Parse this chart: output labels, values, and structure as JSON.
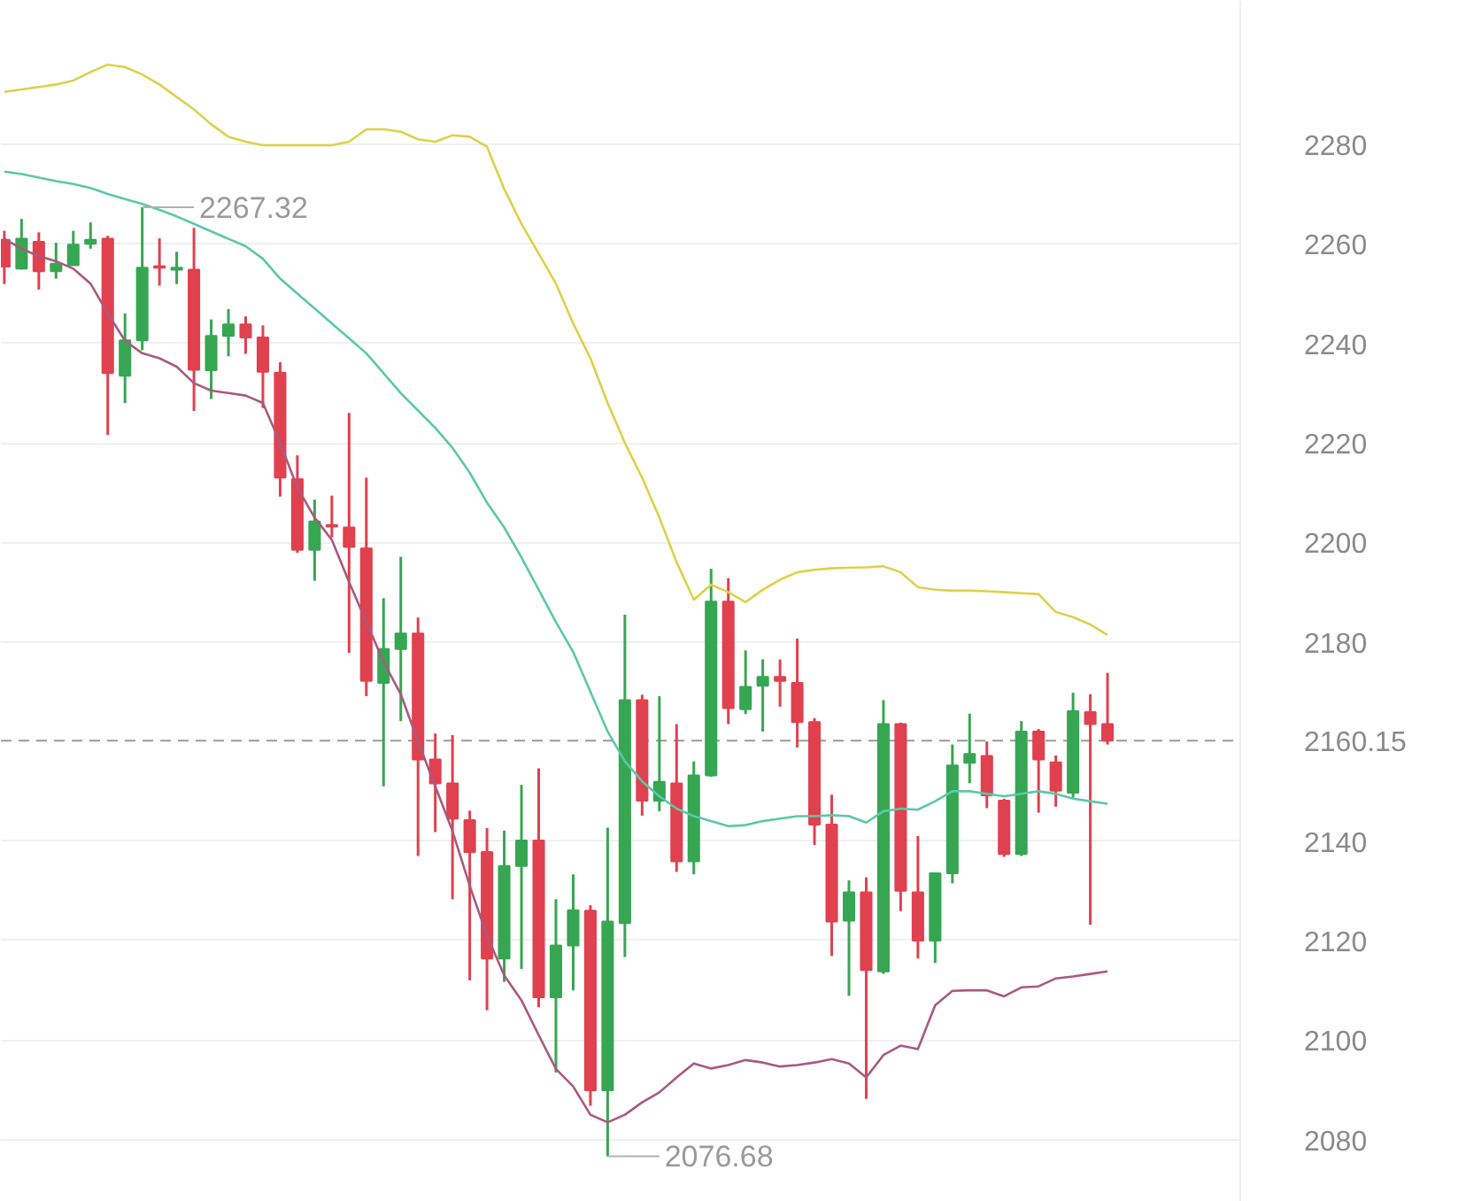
{
  "chart_data": {
    "type": "candlestick",
    "categories": [
      null,
      null,
      null,
      null,
      null,
      null,
      null,
      null,
      null,
      null,
      null,
      null,
      null,
      null,
      null,
      null,
      null,
      null,
      null,
      null,
      null,
      null,
      null,
      null,
      null,
      null,
      null,
      null,
      null,
      null,
      null,
      null,
      null,
      null,
      null,
      null,
      null,
      null,
      null,
      null,
      null,
      null,
      null,
      null,
      null,
      null,
      null,
      null,
      null,
      null,
      null,
      null,
      null,
      null,
      null,
      null,
      null,
      null,
      null,
      null,
      null,
      null,
      null,
      null,
      null
    ],
    "ohlc": [
      [
        2260.8,
        2262.6,
        2251.9,
        2255.4
      ],
      [
        2255,
        2265,
        2254.8,
        2261
      ],
      [
        2260.4,
        2262.3,
        2250.8,
        2254.5
      ],
      [
        2254.5,
        2260.2,
        2253,
        2256
      ],
      [
        2255.7,
        2262.6,
        2255.7,
        2259.8
      ],
      [
        2260,
        2264.3,
        2259,
        2260.8
      ],
      [
        2261,
        2261.6,
        2221.6,
        2234
      ],
      [
        2233.5,
        2246,
        2228,
        2240.6
      ],
      [
        2240.6,
        2267.32,
        2238.6,
        2255.2
      ],
      [
        2255.5,
        2261.1,
        2251.6,
        2255.2
      ],
      [
        2254.8,
        2258.4,
        2251.9,
        2255.2
      ],
      [
        2254.8,
        2263.2,
        2226.4,
        2234.7
      ],
      [
        2234.6,
        2244.8,
        2228.8,
        2241.5
      ],
      [
        2241.5,
        2246.9,
        2237.4,
        2243.8
      ],
      [
        2243.8,
        2245.4,
        2237.9,
        2241.2
      ],
      [
        2241.2,
        2243.6,
        2227,
        2234.3
      ],
      [
        2234.1,
        2236.2,
        2209.2,
        2213
      ],
      [
        2212.7,
        2217.5,
        2197.9,
        2198.5
      ],
      [
        2198.5,
        2208.6,
        2192.3,
        2204.2
      ],
      [
        2203.5,
        2209.4,
        2201,
        2203.2
      ],
      [
        2203,
        2226,
        2177.8,
        2199.1
      ],
      [
        2198.8,
        2213,
        2169.1,
        2172.2
      ],
      [
        2171.8,
        2188.8,
        2151,
        2178.6
      ],
      [
        2178.6,
        2197.1,
        2164.1,
        2181.7
      ],
      [
        2181.7,
        2184.9,
        2137,
        2156.4
      ],
      [
        2156.4,
        2161.6,
        2141.8,
        2151.6
      ],
      [
        2151.6,
        2161.3,
        2128.3,
        2144.5
      ],
      [
        2144.2,
        2146.1,
        2112,
        2137.8
      ],
      [
        2137.8,
        2142.6,
        2106,
        2116.4
      ],
      [
        2116.4,
        2142.1,
        2111.7,
        2135
      ],
      [
        2135,
        2151.3,
        2114.3,
        2140.1
      ],
      [
        2140.1,
        2154.6,
        2106.6,
        2108.6
      ],
      [
        2108.6,
        2128.3,
        2093.5,
        2119
      ],
      [
        2119,
        2133.3,
        2110,
        2126.1
      ],
      [
        2126,
        2127.1,
        2086.8,
        2089.9
      ],
      [
        2089.9,
        2142.7,
        2076.68,
        2123.8
      ],
      [
        2123.5,
        2185.5,
        2116.7,
        2168.3
      ],
      [
        2168.3,
        2169.4,
        2145.1,
        2148.1
      ],
      [
        2148.1,
        2169.1,
        2146,
        2151.9
      ],
      [
        2151.6,
        2163.5,
        2133.8,
        2135.9
      ],
      [
        2135.9,
        2156,
        2133.3,
        2153.2
      ],
      [
        2153.2,
        2194.7,
        2152.9,
        2188.1
      ],
      [
        2188.1,
        2192.8,
        2163.5,
        2166.7
      ],
      [
        2166.5,
        2178.3,
        2165.5,
        2171
      ],
      [
        2171.2,
        2176.5,
        2162,
        2173
      ],
      [
        2173,
        2176.5,
        2167,
        2172.2
      ],
      [
        2171.8,
        2180.7,
        2158.8,
        2163.9
      ],
      [
        2163.9,
        2164.7,
        2139.2,
        2143.3
      ],
      [
        2143.3,
        2149.3,
        2116.9,
        2123.8
      ],
      [
        2124,
        2132.1,
        2108.9,
        2129.7
      ],
      [
        2129.7,
        2132.7,
        2088.2,
        2114.1
      ],
      [
        2113.8,
        2168.3,
        2113.3,
        2163.5
      ],
      [
        2163.5,
        2163.8,
        2125.9,
        2130
      ],
      [
        2129.7,
        2141,
        2116.4,
        2120
      ],
      [
        2120,
        2133.6,
        2115.5,
        2133.5
      ],
      [
        2133.5,
        2159.4,
        2131.5,
        2155.2
      ],
      [
        2155.7,
        2165.6,
        2151.6,
        2157.5
      ],
      [
        2157.1,
        2160,
        2146.6,
        2149.2
      ],
      [
        2148.1,
        2148.5,
        2136.8,
        2137.4
      ],
      [
        2137.4,
        2164.1,
        2137,
        2162
      ],
      [
        2162,
        2162.5,
        2145.7,
        2156.4
      ],
      [
        2155.8,
        2157.2,
        2146.9,
        2150.1
      ],
      [
        2149.7,
        2169.8,
        2148.7,
        2166.1
      ],
      [
        2165.9,
        2169.5,
        2123.2,
        2163.5
      ],
      [
        2163.5,
        2173.8,
        2159.4,
        2160.15
      ]
    ],
    "colors": [
      "#e0414f",
      "#37a653",
      "#e0414f",
      "#37a653",
      "#37a653",
      "#37a653",
      "#e0414f",
      "#37a653",
      "#37a653",
      "#e0414f",
      "#37a653",
      "#e0414f",
      "#37a653",
      "#37a653",
      "#e0414f",
      "#e0414f",
      "#e0414f",
      "#e0414f",
      "#37a653",
      "#e0414f",
      "#e0414f",
      "#e0414f",
      "#37a653",
      "#37a653",
      "#e0414f",
      "#e0414f",
      "#e0414f",
      "#e0414f",
      "#e0414f",
      "#37a653",
      "#37a653",
      "#e0414f",
      "#37a653",
      "#37a653",
      "#e0414f",
      "#37a653",
      "#37a653",
      "#e0414f",
      "#37a653",
      "#e0414f",
      "#37a653",
      "#37a653",
      "#e0414f",
      "#37a653",
      "#37a653",
      "#e0414f",
      "#e0414f",
      "#e0414f",
      "#e0414f",
      "#37a653",
      "#e0414f",
      "#37a653",
      "#e0414f",
      "#e0414f",
      "#37a653",
      "#37a653",
      "#37a653",
      "#e0414f",
      "#e0414f",
      "#37a653",
      "#e0414f",
      "#e0414f",
      "#37a653",
      "#e0414f",
      "#e0414f"
    ],
    "series": [
      {
        "type": "line",
        "color": "#e0d046",
        "values": [
          2290.5,
          2291,
          2291.5,
          2292,
          2292.8,
          2294.5,
          2296,
          2295.5,
          2294,
          2292,
          2289.5,
          2287,
          2284,
          2281.5,
          2280.5,
          2279.8,
          2279.8,
          2279.8,
          2279.8,
          2279.8,
          2280.5,
          2283,
          2283,
          2282.5,
          2281,
          2280.5,
          2281.8,
          2281.5,
          2279.5,
          2271,
          2264,
          2258,
          2252,
          2244,
          2237,
          2228,
          2220,
          2213,
          2205,
          2196,
          2188.5,
          2191.5,
          2190,
          2188,
          2190.5,
          2192.5,
          2194,
          2194.5,
          2194.8,
          2194.9,
          2195,
          2195.2,
          2194,
          2191,
          2190.5,
          2190.3,
          2190.3,
          2190.2,
          2190,
          2189.8,
          2189.6,
          2186,
          2185,
          2183.5,
          2181.4
        ]
      },
      {
        "type": "line",
        "color": "#5cc8a8",
        "values": [
          2274.5,
          2274,
          2273.3,
          2272.6,
          2272,
          2271.2,
          2270,
          2269,
          2268,
          2266.8,
          2265.5,
          2264,
          2262.5,
          2261,
          2259.5,
          2257,
          2253,
          2250,
          2247,
          2244,
          2241,
          2238,
          2234,
          2230,
          2226.5,
          2223,
          2219,
          2214,
          2208,
          2203,
          2197,
          2190.5,
          2184,
          2178,
          2170,
          2162,
          2156,
          2152,
          2149,
          2146.5,
          2145,
          2144,
          2143,
          2143.2,
          2144,
          2144.5,
          2145,
          2145,
          2145.2,
          2145,
          2143.7,
          2146,
          2146.5,
          2146.3,
          2148,
          2150,
          2150,
          2149.5,
          2149,
          2149.5,
          2150,
          2149.5,
          2148.5,
          2148,
          2147.5
        ]
      },
      {
        "type": "line",
        "color": "#a9597f",
        "values": [
          2261,
          2259,
          2257.5,
          2256.5,
          2255,
          2252,
          2246,
          2240.5,
          2238,
          2237,
          2235.3,
          2232,
          2230.5,
          2230,
          2229.5,
          2228,
          2220,
          2211,
          2205,
          2200.5,
          2192,
          2184,
          2176,
          2169.5,
          2160,
          2151,
          2142,
          2131,
          2121,
          2113,
          2108,
          2101,
          2094.2,
          2090.7,
          2085,
          2083.5,
          2085,
          2087.5,
          2089.5,
          2092.5,
          2095.3,
          2094.3,
          2095,
          2096,
          2095.5,
          2094.7,
          2095,
          2095.5,
          2096.2,
          2095.3,
          2092.5,
          2097,
          2098.9,
          2098.2,
          2107,
          2109.9,
          2110,
          2110,
          2108.8,
          2110.6,
          2110.8,
          2112.4,
          2112.8,
          2113.3,
          2113.8
        ]
      }
    ],
    "ylim": [
      2067.5,
      2308.8
    ],
    "yticks": [
      2080,
      2100,
      2120,
      2140,
      2180,
      2200,
      2220,
      2240,
      2260,
      2280
    ],
    "tick_labels": "y",
    "grid": "y",
    "ref_lines": [
      {
        "axis": "y",
        "value": 2160.15,
        "label": "2160.15",
        "color": "#9a9a9a",
        "line_style": "dashed"
      }
    ],
    "annotations": [
      "2267.32",
      "2076.68"
    ]
  }
}
